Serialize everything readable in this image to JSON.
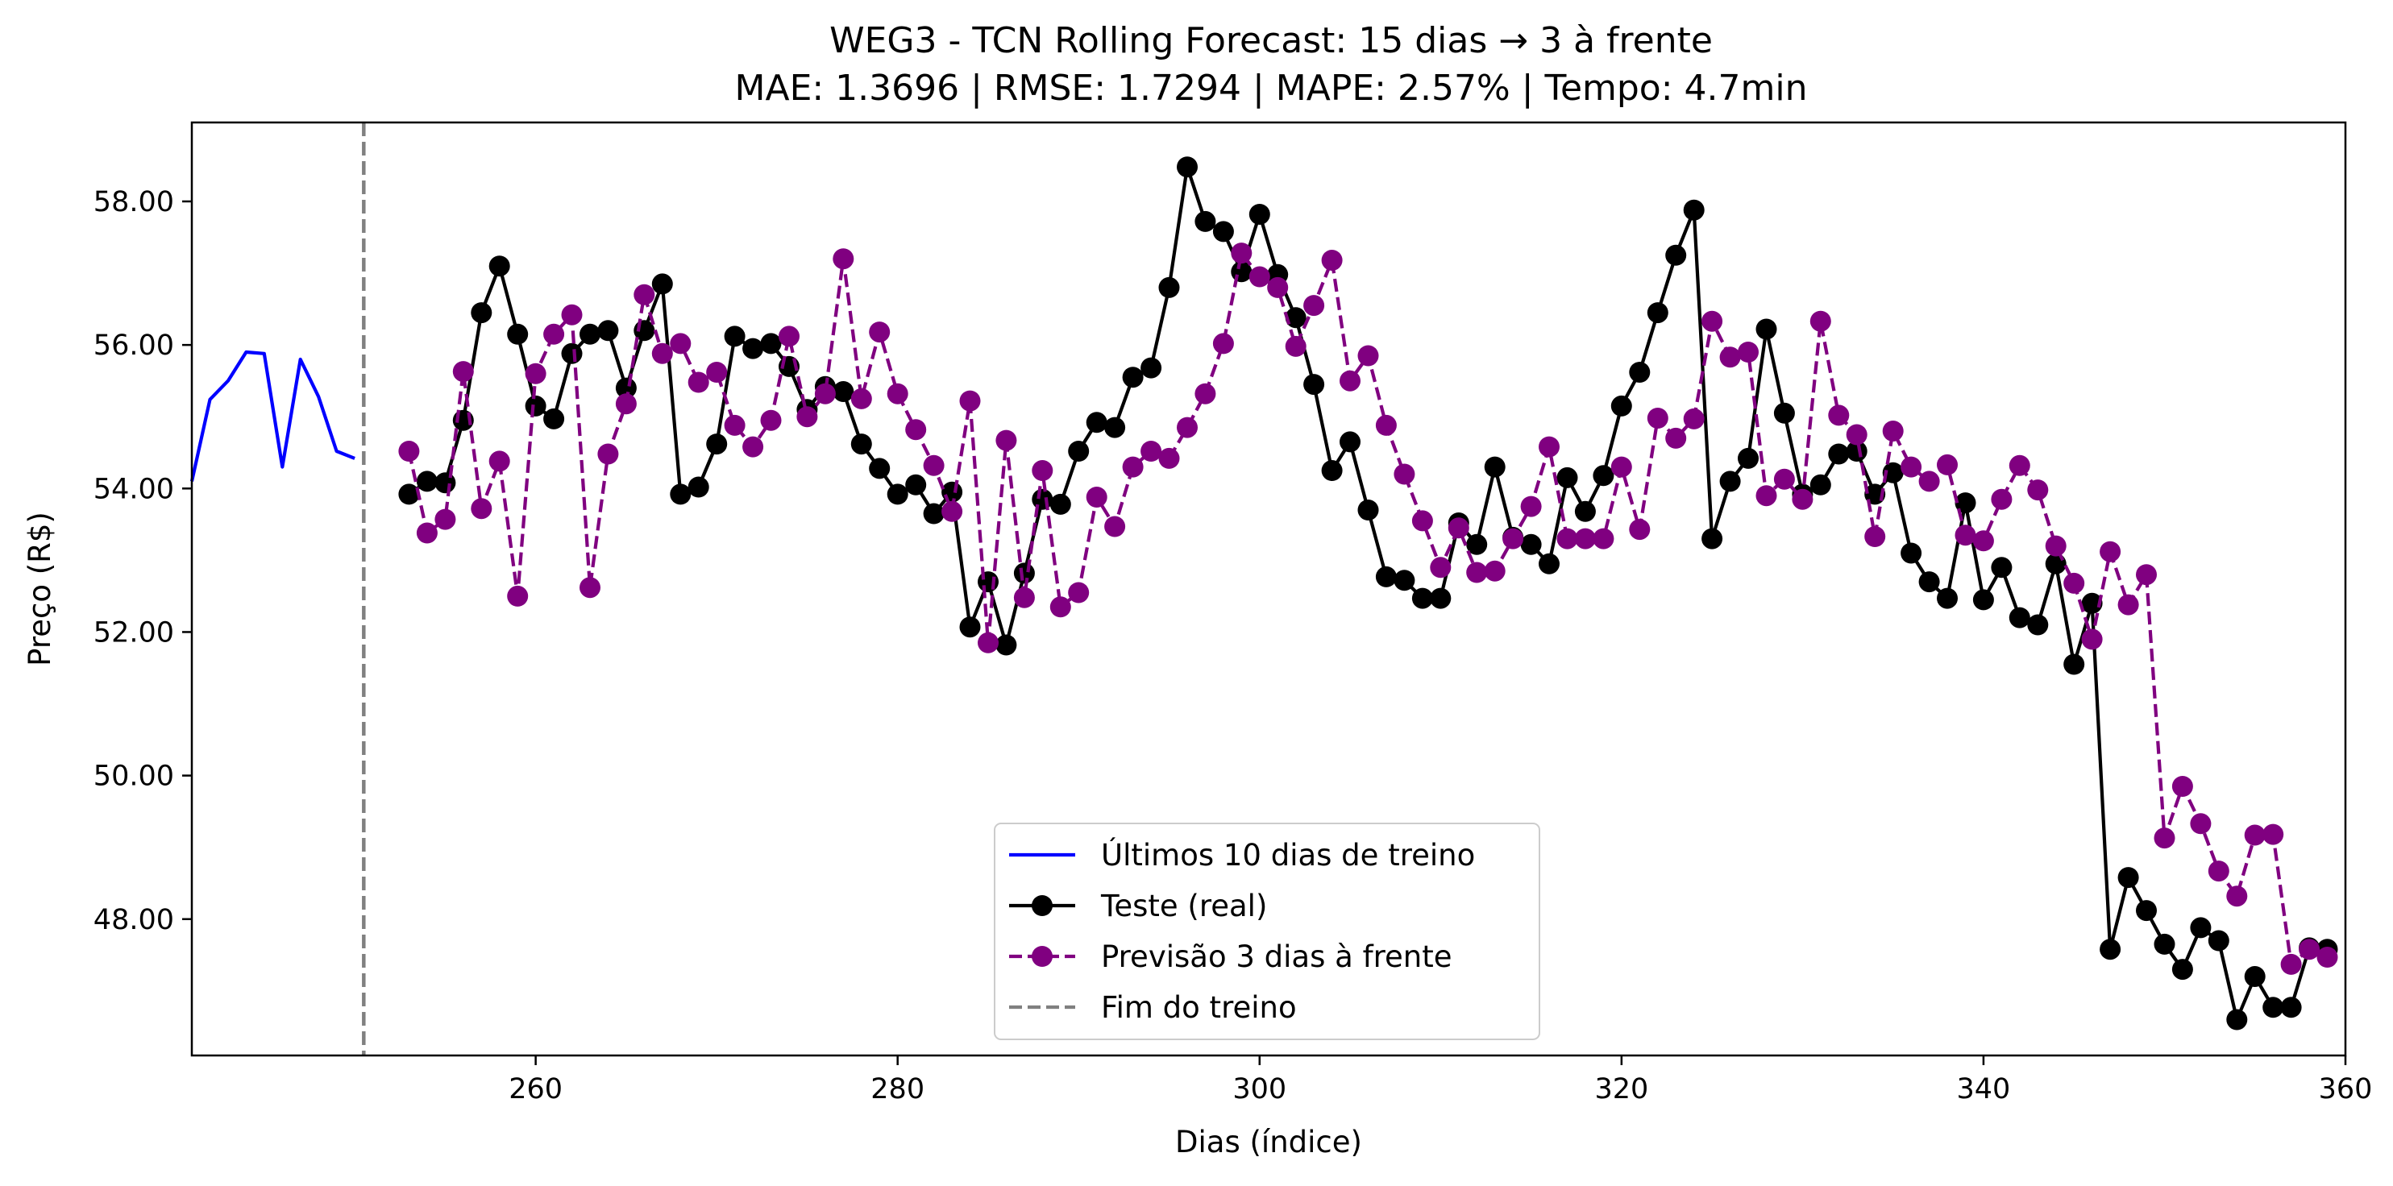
{
  "chart_data": {
    "type": "line",
    "title": "WEG3 - TCN Rolling Forecast: 15 dias → 3 à frente",
    "subtitle": "MAE: 1.3696 | RMSE: 1.7294 | MAPE: 2.57% | Tempo: 4.7min",
    "xlabel": "Dias (índice)",
    "ylabel": "Preço (R$)",
    "xlim": [
      241,
      360
    ],
    "ylim": [
      46.1,
      59.1
    ],
    "x_ticks": [
      260,
      280,
      300,
      320,
      340,
      360
    ],
    "x_tick_labels": [
      "260",
      "280",
      "300",
      "320",
      "340",
      "360"
    ],
    "y_ticks": [
      48,
      50,
      52,
      54,
      56,
      58
    ],
    "y_tick_labels": [
      "48.00",
      "50.00",
      "52.00",
      "54.00",
      "56.00",
      "58.00"
    ],
    "grid": false,
    "legend_position": "lower center",
    "series": [
      {
        "name": "Últimos 10 dias de treino",
        "style": "solid",
        "marker": "none",
        "color": "#0000ff",
        "x": [
          241,
          242,
          243,
          244,
          245,
          246,
          247,
          248,
          249,
          250
        ],
        "y": [
          54.1,
          55.24,
          55.5,
          55.9,
          55.88,
          54.3,
          55.8,
          55.28,
          54.52,
          54.42
        ]
      },
      {
        "name": "Teste (real)",
        "style": "solid",
        "marker": "circle",
        "color": "#000000",
        "x": [
          253,
          254,
          255,
          256,
          257,
          258,
          259,
          260,
          261,
          262,
          263,
          264,
          265,
          266,
          267,
          268,
          269,
          270,
          271,
          272,
          273,
          274,
          275,
          276,
          277,
          278,
          279,
          280,
          281,
          282,
          283,
          284,
          285,
          286,
          287,
          288,
          289,
          290,
          291,
          292,
          293,
          294,
          295,
          296,
          297,
          298,
          299,
          300,
          301,
          302,
          303,
          304,
          305,
          306,
          307,
          308,
          309,
          310,
          311,
          312,
          313,
          314,
          315,
          316,
          317,
          318,
          319,
          320,
          321,
          322,
          323,
          324,
          325,
          326,
          327,
          328,
          329,
          330,
          331,
          332,
          333,
          334,
          335,
          336,
          337,
          338,
          339,
          340,
          341,
          342,
          343,
          344,
          345,
          346,
          347,
          348,
          349,
          350,
          351,
          352,
          353,
          354,
          355,
          356,
          357,
          358,
          359
        ],
        "y": [
          53.92,
          54.1,
          54.08,
          54.95,
          56.45,
          57.1,
          56.15,
          55.15,
          54.97,
          55.88,
          56.15,
          56.2,
          55.4,
          56.2,
          56.85,
          53.92,
          54.02,
          54.62,
          56.12,
          55.95,
          56.02,
          55.7,
          55.1,
          55.42,
          55.35,
          54.62,
          54.28,
          53.92,
          54.05,
          53.65,
          53.95,
          52.07,
          52.7,
          51.82,
          52.82,
          53.85,
          53.78,
          54.52,
          54.92,
          54.85,
          55.55,
          55.68,
          56.8,
          58.48,
          57.72,
          57.58,
          57.02,
          57.82,
          56.98,
          56.38,
          55.45,
          54.25,
          54.65,
          53.7,
          52.77,
          52.72,
          52.47,
          52.47,
          53.52,
          53.22,
          54.3,
          53.32,
          53.22,
          52.95,
          54.15,
          53.68,
          54.18,
          55.15,
          55.62,
          56.45,
          57.25,
          57.88,
          53.3,
          54.1,
          54.42,
          56.22,
          55.05,
          53.92,
          54.05,
          54.48,
          54.52,
          53.92,
          54.22,
          53.1,
          52.7,
          52.47,
          53.8,
          52.45,
          52.9,
          52.2,
          52.1,
          52.95,
          51.55,
          52.4,
          47.58,
          48.58,
          48.12,
          47.65,
          47.3,
          47.88,
          47.7,
          46.6,
          47.2,
          46.77,
          46.77,
          47.6,
          47.58
        ]
      },
      {
        "name": "Previsão 3 dias à frente",
        "style": "dashed",
        "marker": "circle",
        "color": "#800080",
        "x": [
          253,
          254,
          255,
          256,
          257,
          258,
          259,
          260,
          261,
          262,
          263,
          264,
          265,
          266,
          267,
          268,
          269,
          270,
          271,
          272,
          273,
          274,
          275,
          276,
          277,
          278,
          279,
          280,
          281,
          282,
          283,
          284,
          285,
          286,
          287,
          288,
          289,
          290,
          291,
          292,
          293,
          294,
          295,
          296,
          297,
          298,
          299,
          300,
          301,
          302,
          303,
          304,
          305,
          306,
          307,
          308,
          309,
          310,
          311,
          312,
          313,
          314,
          315,
          316,
          317,
          318,
          319,
          320,
          321,
          322,
          323,
          324,
          325,
          326,
          327,
          328,
          329,
          330,
          331,
          332,
          333,
          334,
          335,
          336,
          337,
          338,
          339,
          340,
          341,
          342,
          343,
          344,
          345,
          346,
          347,
          348,
          349,
          350,
          351,
          352,
          353,
          354,
          355,
          356,
          357,
          358,
          359
        ],
        "y": [
          54.52,
          53.38,
          53.57,
          55.63,
          53.72,
          54.38,
          52.5,
          55.6,
          56.15,
          56.42,
          52.62,
          54.48,
          55.18,
          56.7,
          55.88,
          56.02,
          55.48,
          55.62,
          54.88,
          54.58,
          54.95,
          56.12,
          55.0,
          55.32,
          57.2,
          55.25,
          56.18,
          55.32,
          54.82,
          54.32,
          53.68,
          55.22,
          51.85,
          54.67,
          52.48,
          54.25,
          52.35,
          52.55,
          53.88,
          53.47,
          54.3,
          54.52,
          54.42,
          54.85,
          55.32,
          56.02,
          57.28,
          56.95,
          56.8,
          55.98,
          56.55,
          57.18,
          55.5,
          55.85,
          54.88,
          54.2,
          53.55,
          52.9,
          53.45,
          52.83,
          52.85,
          53.3,
          53.75,
          54.58,
          53.3,
          53.3,
          53.3,
          54.3,
          53.43,
          54.98,
          54.7,
          54.97,
          56.33,
          55.83,
          55.9,
          53.9,
          54.13,
          53.85,
          56.33,
          55.02,
          54.75,
          53.33,
          54.8,
          54.3,
          54.1,
          54.33,
          53.35,
          53.27,
          53.85,
          54.32,
          53.98,
          53.2,
          52.68,
          51.9,
          53.12,
          52.38,
          52.8,
          49.13,
          49.85,
          49.33,
          48.67,
          48.32,
          49.17,
          49.18,
          47.37,
          47.58,
          47.47
        ]
      },
      {
        "name": "Fim do treino",
        "style": "dashed",
        "marker": "none",
        "color": "#808080",
        "type": "vertical_line",
        "x": 250.5
      }
    ]
  }
}
